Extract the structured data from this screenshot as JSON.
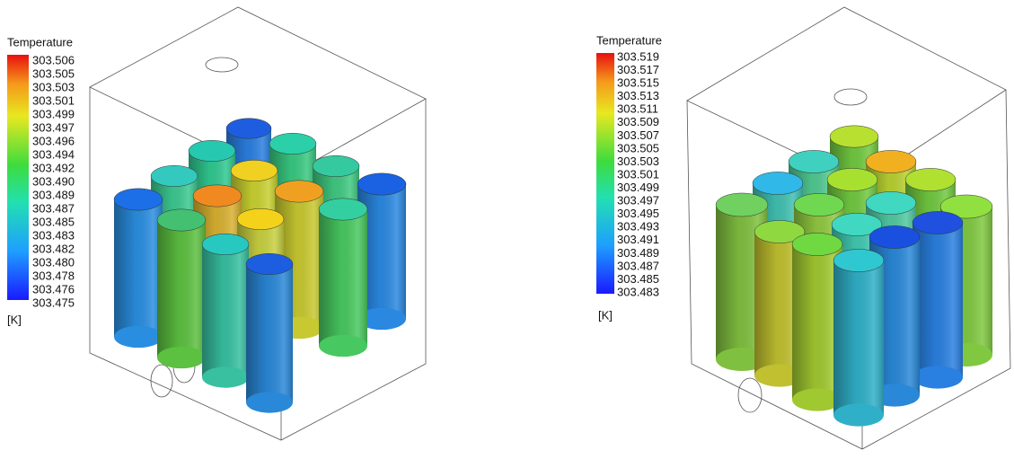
{
  "panels": [
    {
      "legend": {
        "title": "Temperature",
        "labels": [
          "303.506",
          "303.505",
          "303.503",
          "303.501",
          "303.499",
          "303.497",
          "303.496",
          "303.494",
          "303.492",
          "303.490",
          "303.489",
          "303.487",
          "303.485",
          "303.483",
          "303.482",
          "303.480",
          "303.478",
          "303.476",
          "303.475"
        ],
        "unit": "[K]"
      }
    },
    {
      "legend": {
        "title": "Temperature",
        "labels": [
          "303.519",
          "303.517",
          "303.515",
          "303.513",
          "303.511",
          "303.509",
          "303.507",
          "303.505",
          "303.503",
          "303.501",
          "303.499",
          "303.497",
          "303.495",
          "303.493",
          "303.491",
          "303.489",
          "303.487",
          "303.485",
          "303.483"
        ],
        "unit": "[K]"
      }
    }
  ]
}
